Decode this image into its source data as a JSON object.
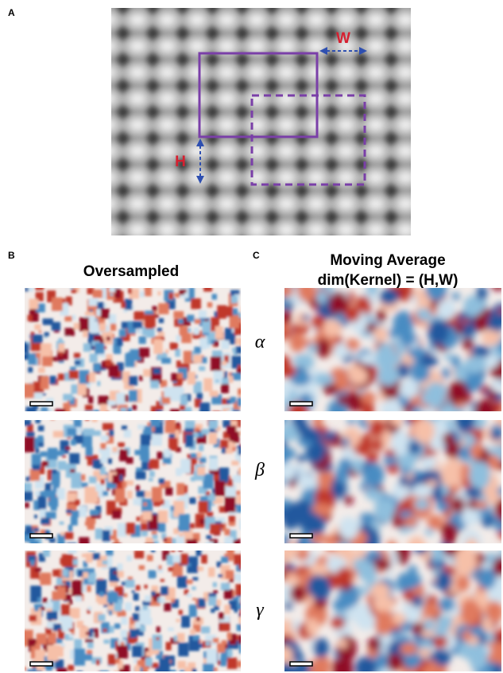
{
  "panel_a": {
    "label": "A",
    "w_label": "W",
    "h_label": "H"
  },
  "panel_b": {
    "label": "B",
    "title": "Oversampled"
  },
  "panel_c": {
    "label": "C",
    "title_line1": "Moving Average",
    "title_line2": "dim(Kernel) = (H,W)"
  },
  "rows": [
    {
      "label": "α"
    },
    {
      "label": "β"
    },
    {
      "label": "γ"
    }
  ]
}
